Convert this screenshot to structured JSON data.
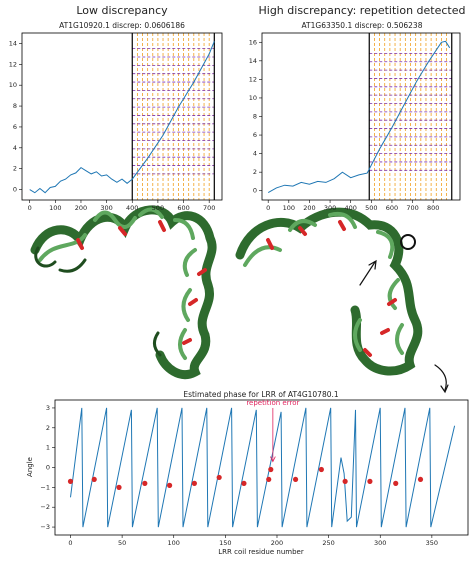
{
  "chart_data": [
    {
      "type": "line",
      "title": "Low discrepancy",
      "subtitle": "AT1G10920.1 discrep: 0.0606186",
      "xlim": [
        -30,
        750
      ],
      "ylim": [
        -1,
        15
      ],
      "xticks": [
        0,
        100,
        200,
        300,
        400,
        500,
        600,
        700
      ],
      "yticks": [
        0,
        2,
        4,
        6,
        8,
        10,
        12,
        14
      ],
      "series": [
        {
          "color": "#1f77b4",
          "x": [
            0,
            20,
            40,
            60,
            80,
            100,
            120,
            140,
            160,
            180,
            200,
            220,
            240,
            260,
            280,
            300,
            320,
            340,
            360,
            380,
            400,
            460,
            520,
            580,
            640,
            700,
            720
          ],
          "y": [
            0,
            -0.3,
            0.1,
            -0.3,
            0.2,
            0.3,
            0.8,
            1.0,
            1.4,
            1.6,
            2.1,
            1.8,
            1.5,
            1.7,
            1.3,
            1.4,
            1.0,
            0.7,
            1.0,
            0.6,
            1.0,
            3.0,
            5.2,
            7.9,
            10.3,
            13.0,
            14.2
          ]
        }
      ],
      "boundaries": [
        400,
        720
      ],
      "vlines": [
        420,
        440,
        460,
        480,
        500,
        520,
        540,
        560,
        580,
        600,
        620,
        640,
        660,
        680,
        700
      ],
      "hlines": [
        1.5,
        2.3,
        3.1,
        3.9,
        4.7,
        5.5,
        6.3,
        7.1,
        7.9,
        8.7,
        9.5,
        10.3,
        11.1,
        11.9,
        12.7,
        13.5
      ]
    },
    {
      "type": "line",
      "title": "High discrepancy: repetition detected",
      "subtitle": "AT1G63350.1 discrep: 0.506238",
      "xlim": [
        -30,
        930
      ],
      "ylim": [
        -1,
        17
      ],
      "xticks": [
        0,
        100,
        200,
        300,
        400,
        500,
        600,
        700,
        800
      ],
      "yticks": [
        0,
        2,
        4,
        6,
        8,
        10,
        12,
        14,
        16
      ],
      "series": [
        {
          "color": "#1f77b4",
          "x": [
            0,
            40,
            80,
            120,
            160,
            200,
            240,
            280,
            320,
            360,
            400,
            440,
            480,
            540,
            600,
            660,
            720,
            780,
            840,
            860,
            880
          ],
          "y": [
            -0.2,
            0.3,
            0.6,
            0.5,
            0.9,
            0.7,
            1.0,
            0.9,
            1.3,
            2.0,
            1.4,
            1.7,
            1.9,
            4.5,
            6.8,
            9.3,
            11.8,
            14.0,
            16.0,
            16.1,
            15.4
          ]
        }
      ],
      "boundaries": [
        490,
        890
      ],
      "vlines": [
        515,
        540,
        565,
        590,
        615,
        640,
        665,
        690,
        715,
        740,
        765,
        790,
        815,
        840,
        865
      ],
      "hlines": [
        2.2,
        3.1,
        4.0,
        4.9,
        5.8,
        6.7,
        7.6,
        8.5,
        9.4,
        10.3,
        11.2,
        12.1,
        13.0,
        13.9,
        14.8
      ]
    },
    {
      "type": "line",
      "title": "Estimated phase for LRR of AT4G10780.1",
      "xlabel": "LRR coil residue number",
      "ylabel": "Angle",
      "xlim": [
        -15,
        385
      ],
      "ylim": [
        -3.4,
        3.4
      ],
      "xticks": [
        0,
        50,
        100,
        150,
        200,
        250,
        300,
        350
      ],
      "yticks": [
        {
          "value": -3,
          "label": "−3"
        },
        {
          "value": -2,
          "label": "−2"
        },
        {
          "value": -1,
          "label": "−1"
        },
        0,
        1,
        2,
        3
      ],
      "annotation": "repetition error",
      "series": [
        {
          "color": "#1f77b4",
          "x": [
            0,
            11,
            12,
            35,
            36,
            59,
            60,
            84,
            85,
            108,
            109,
            132,
            133,
            156,
            157,
            180,
            181,
            204,
            205,
            228,
            229,
            252,
            253,
            262,
            265,
            268,
            272,
            276,
            277,
            300,
            301,
            324,
            325,
            348,
            349,
            372
          ],
          "y": [
            -1.5,
            3,
            -3,
            3,
            -3,
            2.9,
            -3,
            3,
            -3,
            3,
            -3,
            3,
            -3,
            3,
            -3,
            2.9,
            -3,
            2.8,
            -3,
            3,
            -3,
            3,
            -3,
            0.5,
            -0.3,
            -2.7,
            -2.5,
            2.9,
            -3,
            3,
            -3,
            3,
            -3,
            3,
            -3,
            2.1
          ]
        },
        {
          "color": "#d62728",
          "x": [
            0,
            23,
            47,
            72,
            96,
            120,
            144,
            168,
            192,
            194,
            218,
            243,
            266,
            290,
            315,
            339
          ],
          "y": [
            -0.7,
            -0.6,
            -1.0,
            -0.8,
            -0.9,
            -0.8,
            -0.5,
            -0.8,
            -0.6,
            -0.1,
            -0.6,
            -0.1,
            -0.7,
            -0.7,
            -0.8,
            -0.6
          ]
        }
      ]
    }
  ]
}
